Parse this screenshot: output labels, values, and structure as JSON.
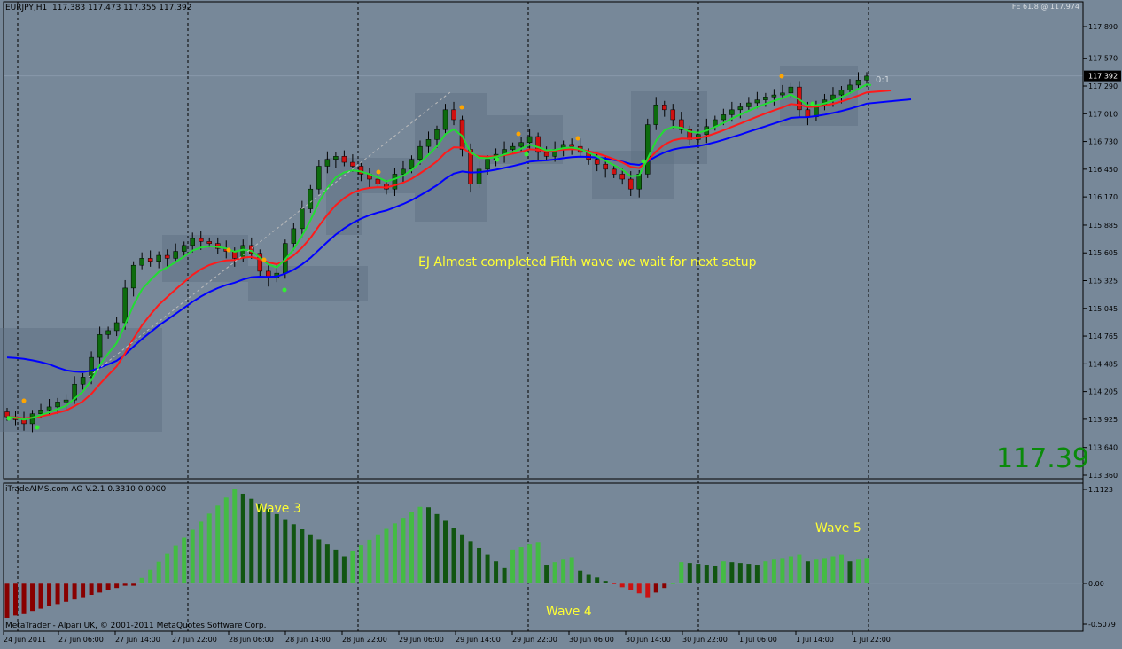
{
  "header": {
    "symbol": "EURJPY,H1",
    "ohlc": "117.383 117.473 117.355 117.392",
    "fe_label": "FE 61.8 @ 117.974"
  },
  "price_axis": {
    "ticks": [
      "117.890",
      "117.570",
      "117.290",
      "117.010",
      "116.730",
      "116.450",
      "116.170",
      "115.885",
      "115.605",
      "115.325",
      "115.045",
      "114.765",
      "114.485",
      "114.205",
      "113.925",
      "113.640",
      "113.360"
    ],
    "current": "117.392"
  },
  "time_axis": [
    "24 Jun 2011",
    "27 Jun 06:00",
    "27 Jun 14:00",
    "27 Jun 22:00",
    "28 Jun 06:00",
    "28 Jun 14:00",
    "28 Jun 22:00",
    "29 Jun 06:00",
    "29 Jun 14:00",
    "29 Jun 22:00",
    "30 Jun 06:00",
    "30 Jun 14:00",
    "30 Jun 22:00",
    "1 Jul 06:00",
    "1 Jul 14:00",
    "1 Jul 22:00"
  ],
  "big_price": "117.39",
  "fib_label": "0:1",
  "annotation": "EJ Almost completed Fifth wave we wait for next setup",
  "indicator": {
    "title": "iTradeAIMS.com AO V.2.1 0.3310 0.0000",
    "axis": [
      "1.1123",
      "0.00",
      "-0.5079"
    ],
    "waves": [
      "Wave 3",
      "Wave 4",
      "Wave 5"
    ]
  },
  "copyright": "MetaTrader - Alpari UK, © 2001-2011 MetaQuotes Software Corp.",
  "colors": {
    "background": "#778899",
    "bull_candle": "#0d6b0d",
    "bear_candle": "#d01010",
    "ma_fast": "#22dd33",
    "ma_mid": "#ff1a1a",
    "ma_slow": "#0000ff",
    "ao_up": "#44bb44",
    "ao_down": "#cc1111",
    "annotation": "#ffff33"
  },
  "chart_data": {
    "type": "candlestick",
    "series_close": [
      113.95,
      113.92,
      113.88,
      113.98,
      114.02,
      114.05,
      114.1,
      114.12,
      114.28,
      114.35,
      114.55,
      114.78,
      114.82,
      114.9,
      115.25,
      115.48,
      115.55,
      115.52,
      115.58,
      115.55,
      115.62,
      115.68,
      115.75,
      115.72,
      115.7,
      115.65,
      115.62,
      115.55,
      115.68,
      115.6,
      115.42,
      115.35,
      115.4,
      115.7,
      115.85,
      116.05,
      116.25,
      116.48,
      116.55,
      116.58,
      116.52,
      116.48,
      116.4,
      116.35,
      116.3,
      116.25,
      116.4,
      116.45,
      116.55,
      116.68,
      116.75,
      116.85,
      117.05,
      116.95,
      116.65,
      116.3,
      116.45,
      116.55,
      116.6,
      116.65,
      116.68,
      116.72,
      116.78,
      116.62,
      116.58,
      116.65,
      116.7,
      116.68,
      116.62,
      116.55,
      116.5,
      116.45,
      116.4,
      116.35,
      116.25,
      116.4,
      116.9,
      117.1,
      117.05,
      116.95,
      116.85,
      116.75,
      116.8,
      116.88,
      116.95,
      117.0,
      117.05,
      117.08,
      117.12,
      117.15,
      117.18,
      117.2,
      117.22,
      117.28,
      117.05,
      116.98,
      117.1,
      117.15,
      117.2,
      117.25,
      117.3,
      117.35,
      117.39
    ],
    "waves": [
      "Wave 3",
      "Wave 4",
      "Wave 5"
    ]
  }
}
